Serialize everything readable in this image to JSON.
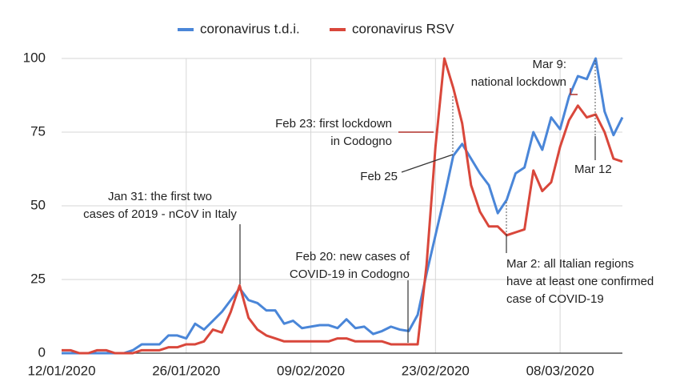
{
  "chart_data": {
    "type": "line",
    "categories": [
      "12/01/2020",
      null,
      null,
      null,
      null,
      null,
      null,
      null,
      null,
      null,
      null,
      null,
      null,
      null,
      "26/01/2020",
      null,
      null,
      null,
      null,
      null,
      null,
      null,
      null,
      null,
      null,
      null,
      null,
      null,
      "09/02/2020",
      null,
      null,
      null,
      null,
      null,
      null,
      null,
      null,
      null,
      null,
      null,
      null,
      null,
      "23/02/2020",
      null,
      null,
      null,
      null,
      null,
      null,
      null,
      null,
      null,
      null,
      null,
      null,
      null,
      "08/03/2020",
      null,
      null,
      null,
      null,
      null,
      null,
      null
    ],
    "series": [
      {
        "name": "coronavirus t.d.i.",
        "color": "#4a86d8",
        "values": [
          0,
          0,
          0,
          0,
          0,
          0,
          0,
          0,
          1,
          3,
          3,
          3,
          6,
          6,
          5,
          10,
          8,
          11,
          14,
          18,
          22,
          18,
          17,
          14.5,
          14.5,
          10,
          11,
          8.5,
          9,
          9.5,
          9.5,
          8.5,
          11.5,
          8.5,
          9,
          6.5,
          7.5,
          9,
          8,
          7.5,
          13,
          27,
          40,
          53,
          67,
          71,
          66,
          61,
          57,
          47.5,
          52,
          61,
          63,
          75,
          69,
          80,
          76,
          87,
          94,
          93,
          100,
          82,
          74,
          80
        ]
      },
      {
        "name": "coronavirus RSV",
        "color": "#d9473b",
        "values": [
          1,
          1,
          0,
          0,
          1,
          1,
          0,
          0,
          0,
          1,
          1,
          1,
          2,
          2,
          3,
          3,
          4,
          8,
          7,
          14,
          23,
          12,
          8,
          6,
          5,
          4,
          4,
          4,
          4,
          4,
          4,
          5,
          5,
          4,
          4,
          4,
          4,
          3,
          3,
          3,
          3,
          30,
          70,
          100,
          90,
          78,
          57,
          48,
          43,
          43,
          40,
          41,
          42,
          62,
          55,
          58,
          70,
          79,
          84,
          80,
          81,
          75,
          66,
          65
        ]
      }
    ],
    "ylim": [
      0,
      100
    ],
    "yticks": [
      0,
      25,
      50,
      75,
      100
    ],
    "grid": true,
    "annotations": [
      {
        "lines": [
          "Jan 31: the first two",
          "cases of 2019 - nCoV in Italy"
        ]
      },
      {
        "lines": [
          "Feb 20: new cases of",
          "COVID-19 in Codogno"
        ]
      },
      {
        "lines": [
          "Feb 23: first lockdown",
          "in Codogno"
        ]
      },
      {
        "lines": [
          "Feb 25"
        ]
      },
      {
        "lines": [
          "Mar 9:",
          "national lockdown"
        ]
      },
      {
        "lines": [
          "Mar 12"
        ]
      },
      {
        "lines": [
          "Mar 2: all Italian regions",
          "have at least one confirmed",
          "case of COVID-19"
        ]
      }
    ]
  }
}
